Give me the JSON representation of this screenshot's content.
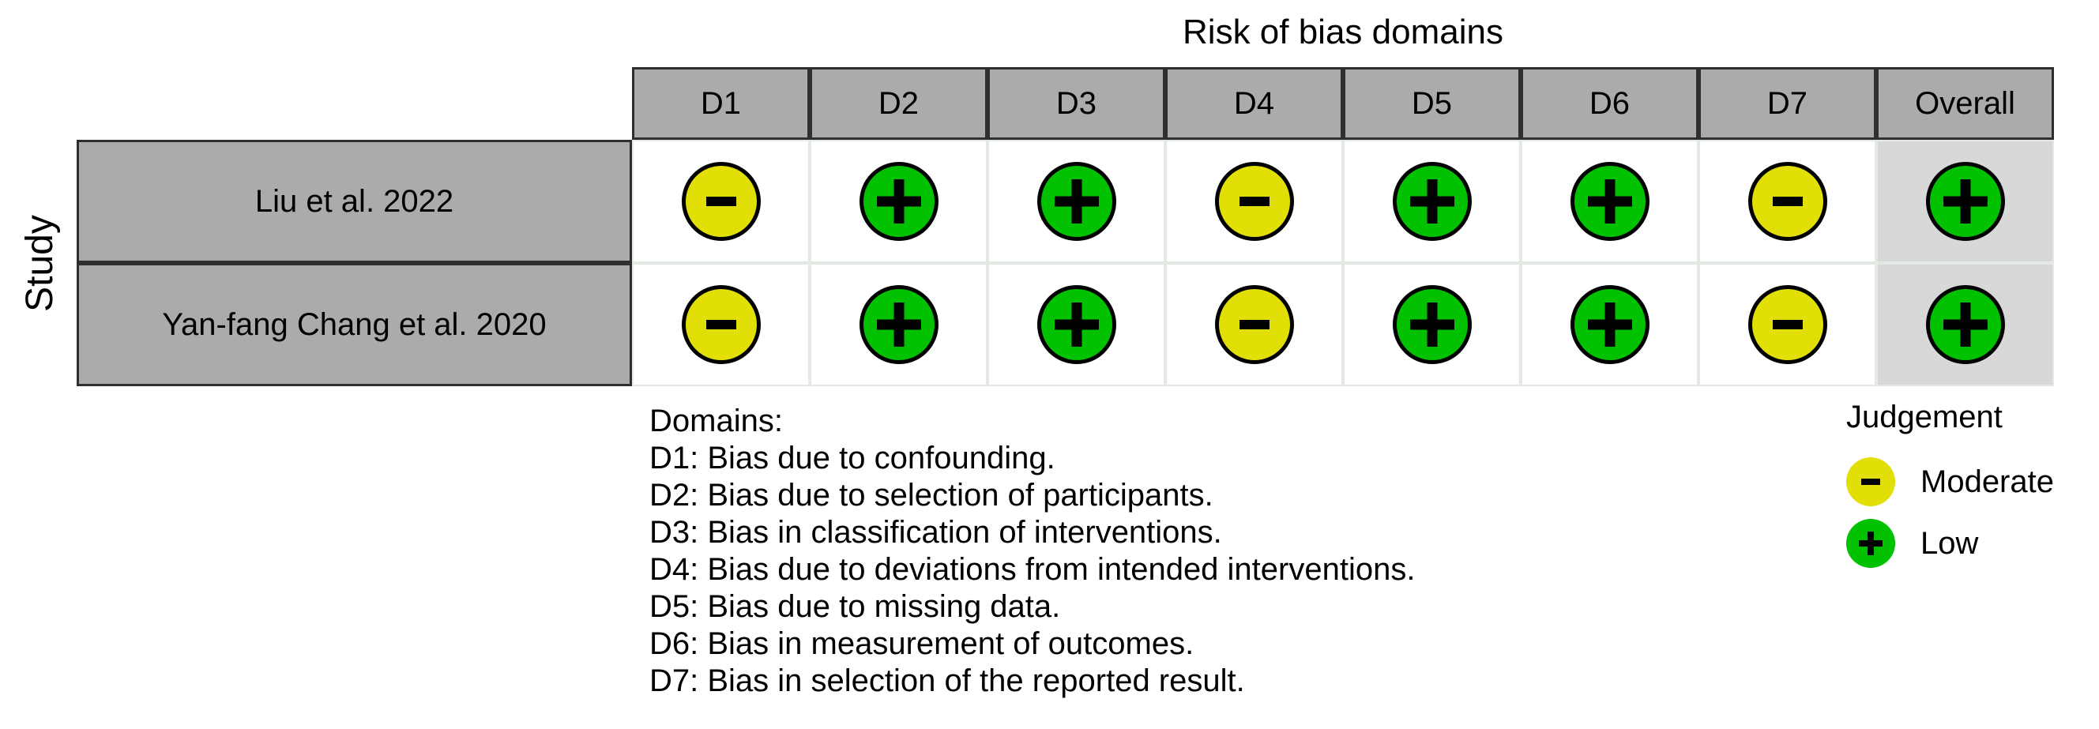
{
  "title": "Risk of bias domains",
  "axis": {
    "y_label": "Study"
  },
  "table": {
    "columns": [
      "D1",
      "D2",
      "D3",
      "D4",
      "D5",
      "D6",
      "D7",
      "Overall"
    ],
    "rows": [
      {
        "study": "Liu et al. 2022",
        "judgements": [
          "moderate",
          "low",
          "low",
          "moderate",
          "low",
          "low",
          "moderate",
          "low"
        ]
      },
      {
        "study": "Yan-fang Chang et al. 2020",
        "judgements": [
          "moderate",
          "low",
          "low",
          "moderate",
          "low",
          "low",
          "moderate",
          "low"
        ]
      }
    ]
  },
  "judgement_styles": {
    "moderate": {
      "color": "#E2DF07",
      "symbol": "minus",
      "label": "Moderate"
    },
    "low": {
      "color": "#02C100",
      "symbol": "plus",
      "label": "Low"
    }
  },
  "legend_domains": {
    "heading": "Domains:",
    "items": [
      "D1: Bias due to confounding.",
      "D2: Bias due to selection of participants.",
      "D3: Bias in classification of interventions.",
      "D4: Bias due to deviations from intended interventions.",
      "D5: Bias due to missing data.",
      "D6: Bias in measurement of outcomes.",
      "D7: Bias in selection of the reported result."
    ]
  },
  "legend_judgement": {
    "heading": "Judgement",
    "items": [
      {
        "judgement": "moderate",
        "label": "Moderate"
      },
      {
        "judgement": "low",
        "label": "Low"
      }
    ]
  },
  "colors": {
    "header_fill": "#ABABAB",
    "row_label_fill": "#ABABAB",
    "cell_fill": "#FFFFFF",
    "overall_cell_fill": "#D8D8D8",
    "table_border": "#2F2F2F",
    "cell_grid": "#E3E9E3",
    "moderate": "#E2DF07",
    "low": "#02C100"
  },
  "chart_data": {
    "type": "table",
    "title": "Risk of bias domains",
    "ylabel": "Study",
    "columns": [
      "D1",
      "D2",
      "D3",
      "D4",
      "D5",
      "D6",
      "D7",
      "Overall"
    ],
    "rows": [
      "Liu et al. 2022",
      "Yan-fang Chang et al. 2020"
    ],
    "values": [
      [
        "Moderate",
        "Low",
        "Low",
        "Moderate",
        "Low",
        "Low",
        "Moderate",
        "Low"
      ],
      [
        "Moderate",
        "Low",
        "Low",
        "Moderate",
        "Low",
        "Low",
        "Moderate",
        "Low"
      ]
    ],
    "legend": {
      "Moderate": "-",
      "Low": "+"
    },
    "legend_position": "right",
    "domain_definitions": [
      "D1: Bias due to confounding.",
      "D2: Bias due to selection of participants.",
      "D3: Bias in classification of interventions.",
      "D4: Bias due to deviations from intended interventions.",
      "D5: Bias due to missing data.",
      "D6: Bias in measurement of outcomes.",
      "D7: Bias in selection of the reported result."
    ]
  }
}
